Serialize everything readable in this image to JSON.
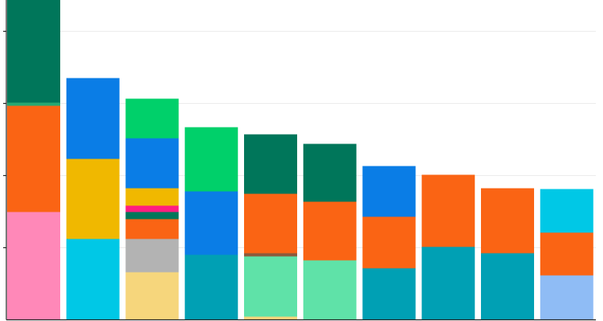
{
  "chart_data": {
    "type": "bar",
    "stacked": true,
    "grid": true,
    "ylim": [
      0,
      445
    ],
    "yticks": [
      0,
      91,
      182,
      273,
      364
    ],
    "title": "",
    "xlabel": "",
    "ylabel": "",
    "categories": [
      "",
      "",
      "",
      "",
      "",
      "",
      "",
      "",
      "",
      ""
    ],
    "bars": [
      {
        "segments": [
          {
            "value": 136,
            "color": "#ff88b8"
          },
          {
            "value": 134,
            "color": "#fa6414"
          },
          {
            "value": 4,
            "color": "#26a872"
          },
          {
            "value": 171,
            "color": "#00765a"
          }
        ]
      },
      {
        "segments": [
          {
            "value": 102,
            "color": "#00c8e6"
          },
          {
            "value": 101,
            "color": "#f0b800"
          },
          {
            "value": 102,
            "color": "#0a7de6"
          }
        ]
      },
      {
        "segments": [
          {
            "value": 60,
            "color": "#f6d67c"
          },
          {
            "value": 42,
            "color": "#b3b3b3"
          },
          {
            "value": 25,
            "color": "#fa6414"
          },
          {
            "value": 9,
            "color": "#00765a"
          },
          {
            "value": 8,
            "color": "#ff1f80"
          },
          {
            "value": 22,
            "color": "#f0b800"
          },
          {
            "value": 63,
            "color": "#0a7de6"
          },
          {
            "value": 50,
            "color": "#00d06a"
          }
        ]
      },
      {
        "segments": [
          {
            "value": 82,
            "color": "#00a0b4"
          },
          {
            "value": 80,
            "color": "#0a7de6"
          },
          {
            "value": 81,
            "color": "#00d06a"
          }
        ]
      },
      {
        "segments": [
          {
            "value": 4,
            "color": "#f6d67c"
          },
          {
            "value": 76,
            "color": "#5fe2a8"
          },
          {
            "value": 4,
            "color": "#8c5a3c"
          },
          {
            "value": 75,
            "color": "#fa6414"
          },
          {
            "value": 75,
            "color": "#00765a"
          }
        ]
      },
      {
        "segments": [
          {
            "value": 75,
            "color": "#5fe2a8"
          },
          {
            "value": 74,
            "color": "#fa6414"
          },
          {
            "value": 73,
            "color": "#00765a"
          }
        ]
      },
      {
        "segments": [
          {
            "value": 65,
            "color": "#00a0b4"
          },
          {
            "value": 65,
            "color": "#fa6414"
          },
          {
            "value": 64,
            "color": "#0a7de6"
          }
        ]
      },
      {
        "segments": [
          {
            "value": 92,
            "color": "#00a0b4"
          },
          {
            "value": 91,
            "color": "#fa6414"
          }
        ]
      },
      {
        "segments": [
          {
            "value": 84,
            "color": "#00a0b4"
          },
          {
            "value": 82,
            "color": "#fa6414"
          }
        ]
      },
      {
        "segments": [
          {
            "value": 56,
            "color": "#8fbcf5"
          },
          {
            "value": 54,
            "color": "#fa6414"
          },
          {
            "value": 55,
            "color": "#00c8e6"
          }
        ]
      }
    ]
  }
}
